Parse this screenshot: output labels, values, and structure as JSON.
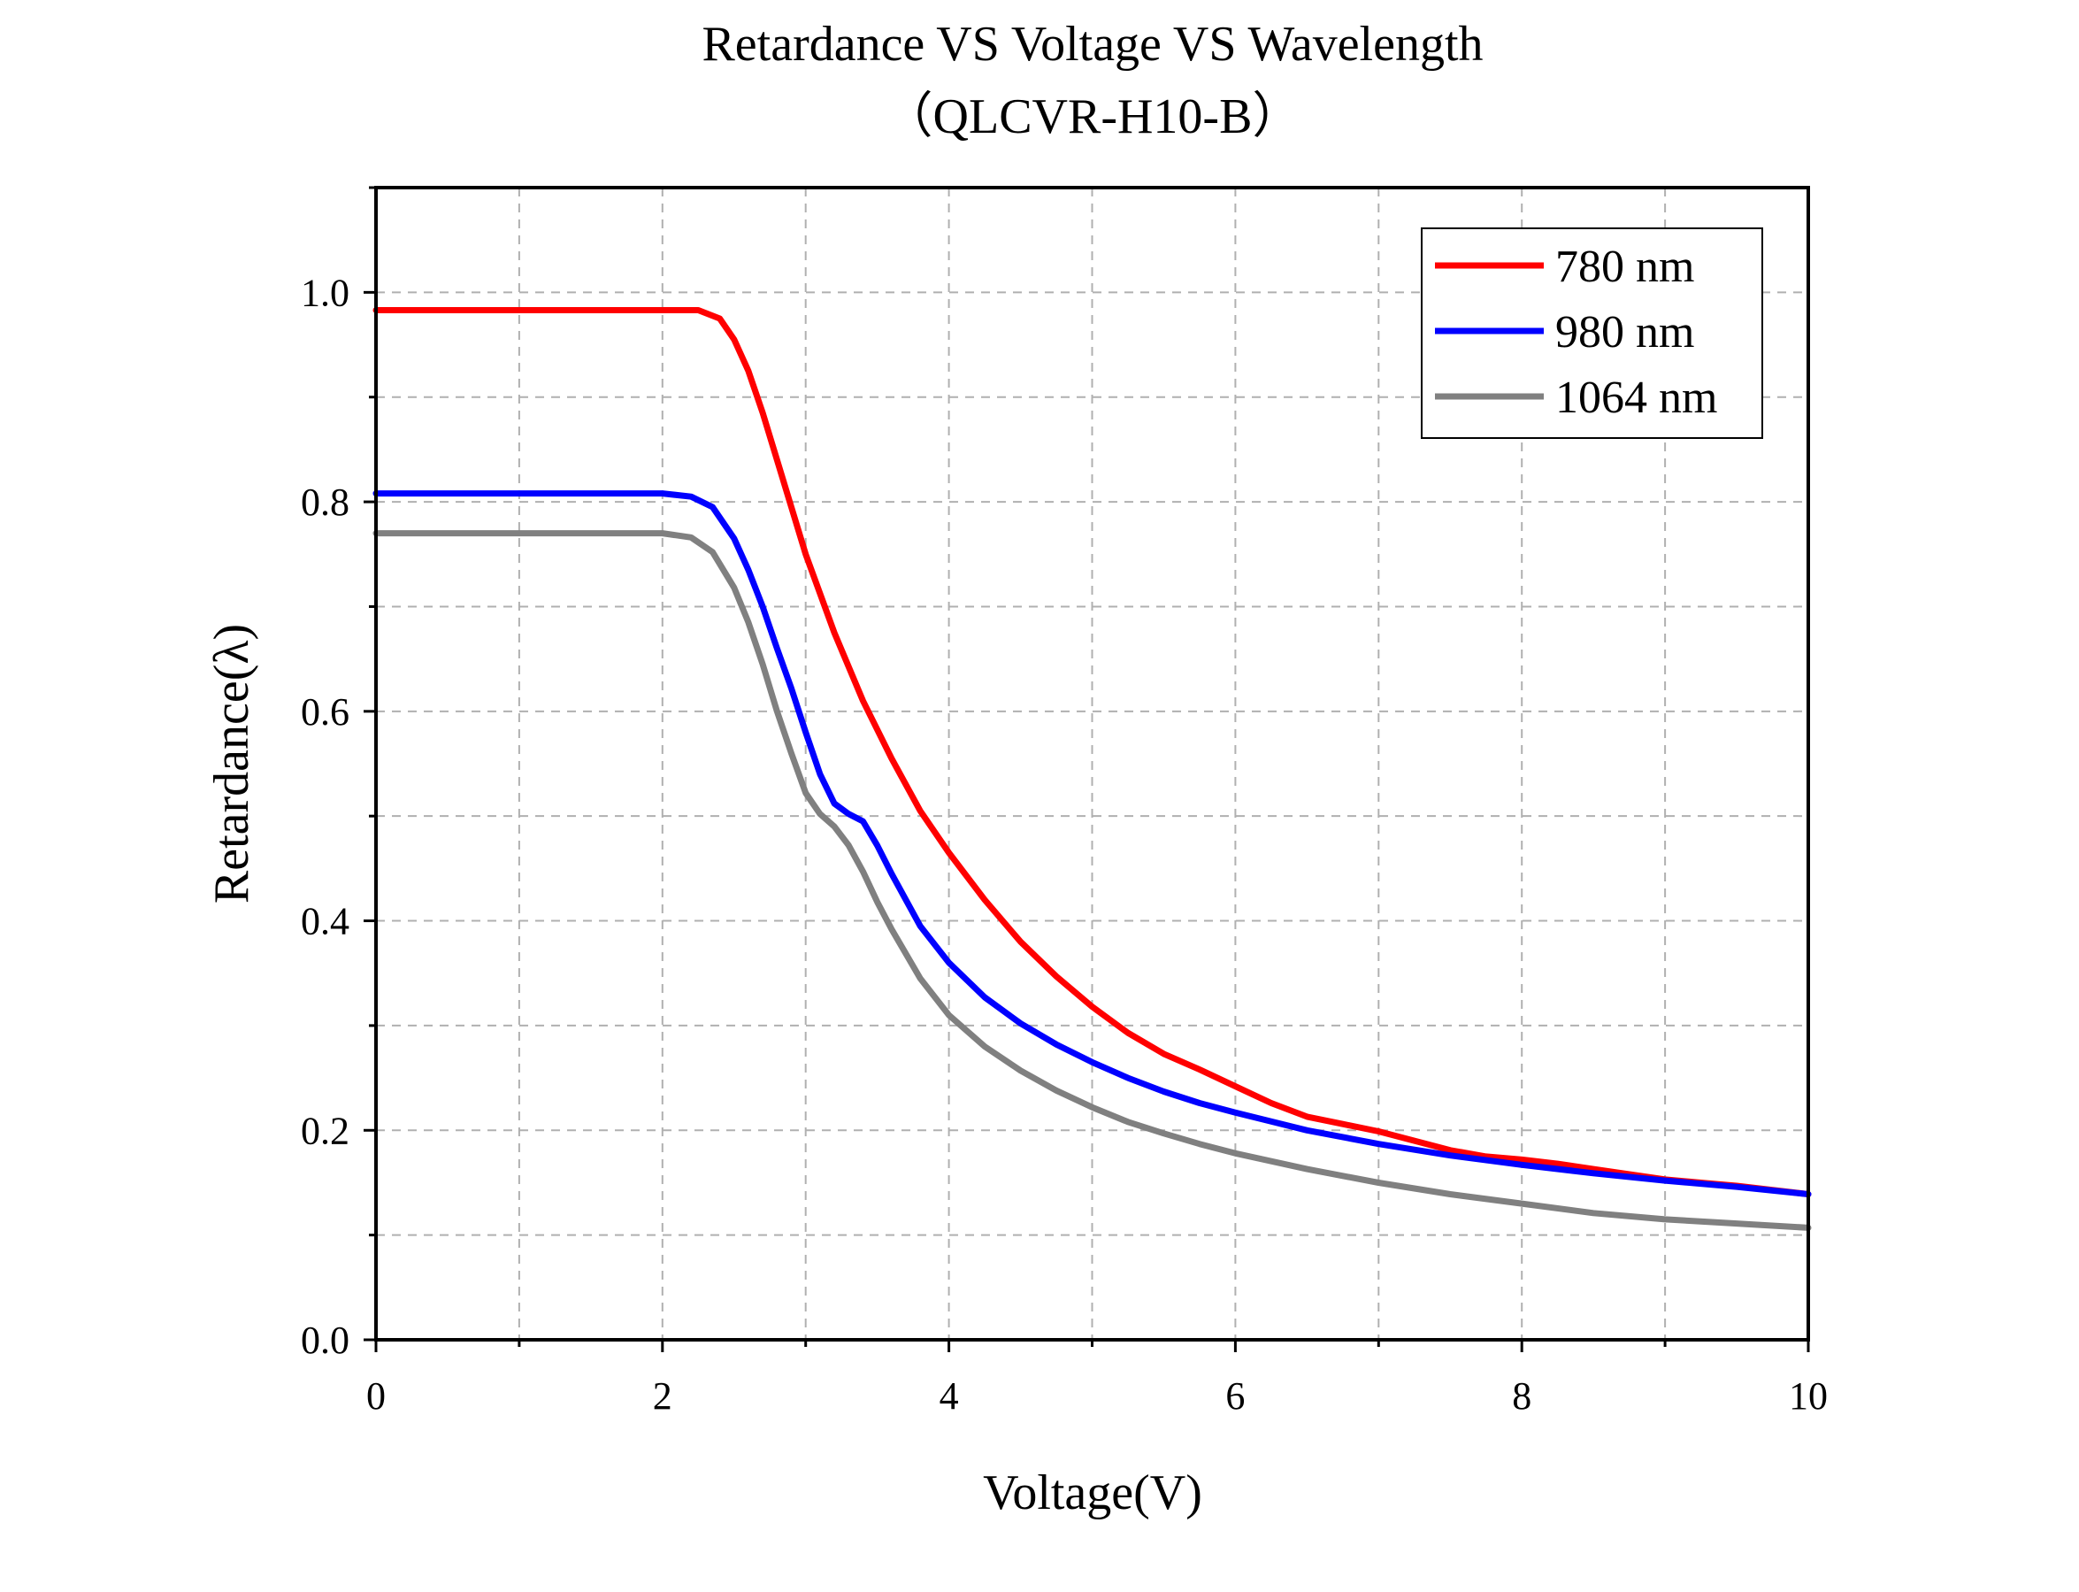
{
  "chart_data": {
    "type": "line",
    "title": "Retardance VS Voltage VS Wavelength",
    "subtitle": "（QLCVR-H10-B）",
    "xlabel": "Voltage(V)",
    "ylabel": "Retardance(λ)",
    "xlim": [
      0,
      10
    ],
    "ylim": [
      0,
      1.1
    ],
    "xticks": [
      0,
      2,
      4,
      6,
      8,
      10
    ],
    "xtick_labels": [
      "0",
      "2",
      "4",
      "6",
      "8",
      "10"
    ],
    "yticks": [
      0.0,
      0.2,
      0.4,
      0.6,
      0.8,
      1.0
    ],
    "ytick_labels": [
      "0.0",
      "0.2",
      "0.4",
      "0.6",
      "0.8",
      "1.0"
    ],
    "grid": true,
    "legend_position": "top-right",
    "series": [
      {
        "name": "780 nm",
        "color": "#ff0000",
        "x": [
          0,
          0.5,
          1.0,
          1.5,
          2.0,
          2.25,
          2.4,
          2.5,
          2.6,
          2.7,
          2.8,
          2.9,
          3.0,
          3.2,
          3.4,
          3.6,
          3.8,
          4.0,
          4.25,
          4.5,
          4.75,
          5.0,
          5.25,
          5.5,
          5.75,
          6.0,
          6.25,
          6.5,
          6.75,
          7.0,
          7.25,
          7.5,
          7.75,
          8.0,
          8.25,
          8.5,
          8.75,
          9.0,
          9.25,
          9.5,
          9.75,
          10.0
        ],
        "y": [
          0.983,
          0.983,
          0.983,
          0.983,
          0.983,
          0.983,
          0.975,
          0.955,
          0.925,
          0.885,
          0.84,
          0.795,
          0.75,
          0.675,
          0.61,
          0.555,
          0.505,
          0.465,
          0.42,
          0.38,
          0.347,
          0.318,
          0.293,
          0.273,
          0.258,
          0.242,
          0.226,
          0.213,
          0.206,
          0.199,
          0.19,
          0.181,
          0.175,
          0.172,
          0.168,
          0.163,
          0.158,
          0.153,
          0.15,
          0.147,
          0.143,
          0.139
        ]
      },
      {
        "name": "980 nm",
        "color": "#0000ff",
        "x": [
          0,
          0.5,
          1.0,
          1.5,
          2.0,
          2.2,
          2.35,
          2.5,
          2.6,
          2.7,
          2.8,
          2.9,
          3.0,
          3.1,
          3.2,
          3.3,
          3.4,
          3.5,
          3.6,
          3.8,
          4.0,
          4.25,
          4.5,
          4.75,
          5.0,
          5.25,
          5.5,
          5.75,
          6.0,
          6.5,
          7.0,
          7.5,
          8.0,
          8.5,
          9.0,
          9.5,
          10.0
        ],
        "y": [
          0.808,
          0.808,
          0.808,
          0.808,
          0.808,
          0.805,
          0.795,
          0.765,
          0.735,
          0.7,
          0.66,
          0.622,
          0.58,
          0.54,
          0.512,
          0.502,
          0.495,
          0.472,
          0.445,
          0.395,
          0.36,
          0.327,
          0.302,
          0.282,
          0.265,
          0.25,
          0.237,
          0.226,
          0.217,
          0.2,
          0.187,
          0.176,
          0.167,
          0.159,
          0.152,
          0.146,
          0.139
        ]
      },
      {
        "name": "1064 nm",
        "color": "#808080",
        "x": [
          0,
          0.5,
          1.0,
          1.5,
          2.0,
          2.2,
          2.35,
          2.5,
          2.6,
          2.7,
          2.8,
          2.9,
          3.0,
          3.1,
          3.2,
          3.3,
          3.4,
          3.5,
          3.6,
          3.8,
          4.0,
          4.25,
          4.5,
          4.75,
          5.0,
          5.25,
          5.5,
          5.75,
          6.0,
          6.5,
          7.0,
          7.5,
          8.0,
          8.5,
          9.0,
          9.5,
          10.0
        ],
        "y": [
          0.77,
          0.77,
          0.77,
          0.77,
          0.77,
          0.766,
          0.752,
          0.718,
          0.685,
          0.645,
          0.6,
          0.56,
          0.522,
          0.502,
          0.49,
          0.472,
          0.447,
          0.418,
          0.392,
          0.345,
          0.31,
          0.28,
          0.257,
          0.238,
          0.222,
          0.208,
          0.197,
          0.187,
          0.178,
          0.163,
          0.15,
          0.139,
          0.13,
          0.121,
          0.115,
          0.111,
          0.107
        ]
      }
    ]
  }
}
